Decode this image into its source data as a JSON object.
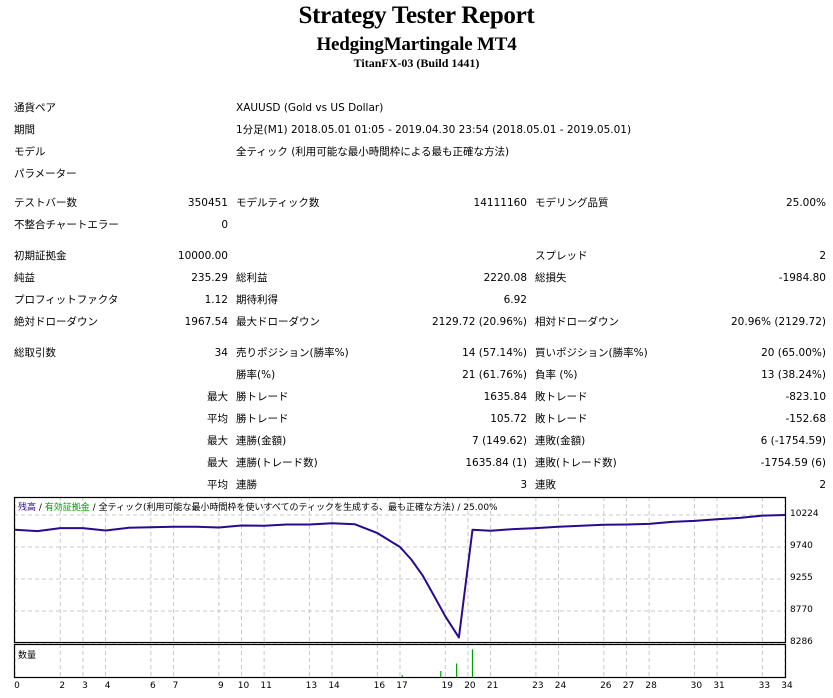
{
  "header": {
    "title": "Strategy Tester Report",
    "ea_name": "HedgingMartingale MT4",
    "server": "TitanFX-03 (Build 1441)"
  },
  "info": {
    "symbol_label": "通貨ペア",
    "symbol_value": "XAUUSD (Gold vs US Dollar)",
    "period_label": "期間",
    "period_value": "1分足(M1) 2018.05.01 01:05 - 2019.04.30 23:54 (2018.05.01 - 2019.05.01)",
    "model_label": "モデル",
    "model_value": "全ティック (利用可能な最小時間枠による最も正確な方法)",
    "params_label": "パラメーター"
  },
  "test": {
    "bars_label": "テストバー数",
    "bars_value": "350451",
    "ticks_label": "モデルティック数",
    "ticks_value": "14111160",
    "quality_label": "モデリング品質",
    "quality_value": "25.00%",
    "mismatch_label": "不整合チャートエラー",
    "mismatch_value": "0"
  },
  "results": {
    "deposit_label": "初期証拠金",
    "deposit_value": "10000.00",
    "spread_label": "スプレッド",
    "spread_value": "2",
    "net_profit_label": "純益",
    "net_profit_value": "235.29",
    "gross_profit_label": "総利益",
    "gross_profit_value": "2220.08",
    "gross_loss_label": "総損失",
    "gross_loss_value": "-1984.80",
    "profit_factor_label": "プロフィットファクタ",
    "profit_factor_value": "1.12",
    "expected_payoff_label": "期待利得",
    "expected_payoff_value": "6.92",
    "abs_dd_label": "絶対ドローダウン",
    "abs_dd_value": "1967.54",
    "max_dd_label": "最大ドローダウン",
    "max_dd_value": "2129.72 (20.96%)",
    "rel_dd_label": "相対ドローダウン",
    "rel_dd_value": "20.96% (2129.72)"
  },
  "trades": {
    "total_label": "総取引数",
    "total_value": "34",
    "short_label": "売りポジション(勝率%)",
    "short_value": "14 (57.14%)",
    "long_label": "買いポジション(勝率%)",
    "long_value": "20 (65.00%)",
    "win_rate_label": "勝率(%)",
    "win_rate_value": "21 (61.76%)",
    "loss_rate_label": "負率 (%)",
    "loss_rate_value": "13 (38.24%)",
    "rows": [
      {
        "prefix": "最大",
        "win_label": "勝トレード",
        "win_value": "1635.84",
        "loss_label": "敗トレード",
        "loss_value": "-823.10"
      },
      {
        "prefix": "平均",
        "win_label": "勝トレード",
        "win_value": "105.72",
        "loss_label": "敗トレード",
        "loss_value": "-152.68"
      },
      {
        "prefix": "最大",
        "win_label": "連勝(金額)",
        "win_value": "7 (149.62)",
        "loss_label": "連敗(金額)",
        "loss_value": "6 (-1754.59)"
      },
      {
        "prefix": "最大",
        "win_label": "連勝(トレード数)",
        "win_value": "1635.84 (1)",
        "loss_label": "連敗(トレード数)",
        "loss_value": "-1754.59 (6)"
      },
      {
        "prefix": "平均",
        "win_label": "連勝",
        "win_value": "3",
        "loss_label": "連敗",
        "loss_value": "2"
      }
    ]
  },
  "chart": {
    "legend_balance": "残高",
    "legend_sep1": " / ",
    "legend_equity": "有効証拠金",
    "legend_sep2": " / ",
    "legend_model": "全ティック(利用可能な最小時間枠を使いすべてのティックを生成する、最も正確な方法)",
    "legend_sep3": " / ",
    "legend_quality": "25.00%",
    "volume_label": "数量",
    "colors": {
      "balance": "#2a0a8c",
      "equity": "#00a000",
      "volume": "#00a000",
      "grid": "#c8c8c8"
    }
  },
  "chart_data": {
    "type": "line",
    "title": "残高 / 有効証拠金",
    "xlabel": "",
    "ylabel": "",
    "y_ticks": [
      10224,
      9740,
      9255,
      8770,
      8286
    ],
    "ylim": [
      8286,
      10224
    ],
    "x_ticks": [
      "0",
      "2",
      "3",
      "4",
      "6",
      "7",
      "9",
      "10",
      "11",
      "13",
      "14",
      "16",
      "17",
      "19",
      "20",
      "21",
      "23",
      "24",
      "26",
      "27",
      "28",
      "30",
      "31",
      "33",
      "34"
    ],
    "grid": true,
    "series": [
      {
        "name": "残高",
        "x": [
          0,
          1,
          2,
          3,
          4,
          5,
          6,
          7,
          8,
          9,
          10,
          11,
          12,
          13,
          14,
          15,
          16,
          17,
          17.5,
          18,
          18.5,
          19,
          19.6,
          20.2,
          21,
          22,
          23,
          24,
          25,
          26,
          27,
          28,
          29,
          30,
          31,
          32,
          33,
          34
        ],
        "values": [
          10000,
          9980,
          10025,
          10025,
          9990,
          10030,
          10040,
          10045,
          10045,
          10035,
          10065,
          10060,
          10080,
          10080,
          10100,
          10085,
          9950,
          9740,
          9550,
          9310,
          9000,
          8690,
          8370,
          10000,
          9985,
          10010,
          10025,
          10045,
          10060,
          10075,
          10080,
          10090,
          10120,
          10135,
          10160,
          10180,
          10215,
          10224
        ]
      }
    ],
    "volume": {
      "name": "数量",
      "x": [
        17.1,
        18.8,
        19.5,
        20.2
      ],
      "relative_heights": [
        0.06,
        0.2,
        0.45,
        0.92
      ]
    }
  }
}
